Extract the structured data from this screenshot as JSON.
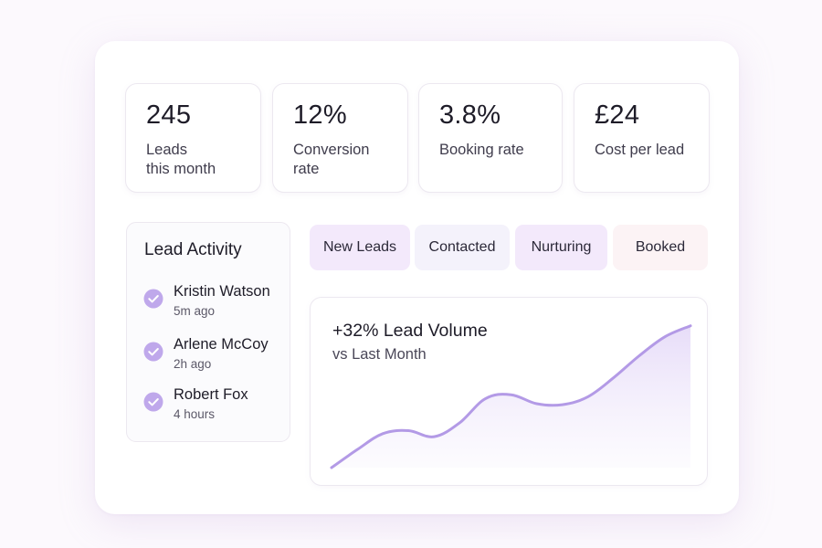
{
  "stats": [
    {
      "value": "245",
      "label": "Leads\nthis month"
    },
    {
      "value": "12%",
      "label": "Conversion\nrate"
    },
    {
      "value": "3.8%",
      "label": "Booking rate"
    },
    {
      "value": "£24",
      "label": "Cost per lead"
    }
  ],
  "activity": {
    "title": "Lead Activity",
    "items": [
      {
        "name": "Kristin Watson",
        "time": "5m ago",
        "icon": "check-circle-icon"
      },
      {
        "name": "Arlene McCoy",
        "time": "2h ago",
        "icon": "check-circle-icon"
      },
      {
        "name": "Robert Fox",
        "time": "4 hours",
        "icon": "check-circle-icon"
      }
    ]
  },
  "tabs": [
    {
      "label": "New Leads",
      "color": "#f3e9fb"
    },
    {
      "label": "Contacted",
      "color": "#f4f2fb"
    },
    {
      "label": "Nurturing",
      "color": "#f3e9fb"
    },
    {
      "label": "Booked",
      "color": "#fcf3f5"
    }
  ],
  "chart": {
    "headline": "+32% Lead Volume",
    "subtitle": "vs Last Month"
  },
  "chart_data": {
    "type": "area",
    "title": "+32% Lead Volume",
    "subtitle": "vs Last Month",
    "x": [
      0,
      1,
      2,
      3,
      4,
      5,
      6,
      7,
      8,
      9,
      10,
      11,
      12,
      13,
      14
    ],
    "values": [
      0,
      18,
      34,
      37,
      31,
      45,
      69,
      73,
      64,
      63,
      71,
      90,
      112,
      131,
      142
    ],
    "ylim": [
      0,
      150
    ],
    "xlabel": "",
    "ylabel": "",
    "grid": false,
    "colors": {
      "line": "#b39ae6",
      "fill_top": "#e6dbf8",
      "fill_bottom": "#fbf9fe"
    }
  },
  "colors": {
    "accent": "#b39ae6",
    "check": "#bfa8eb"
  }
}
